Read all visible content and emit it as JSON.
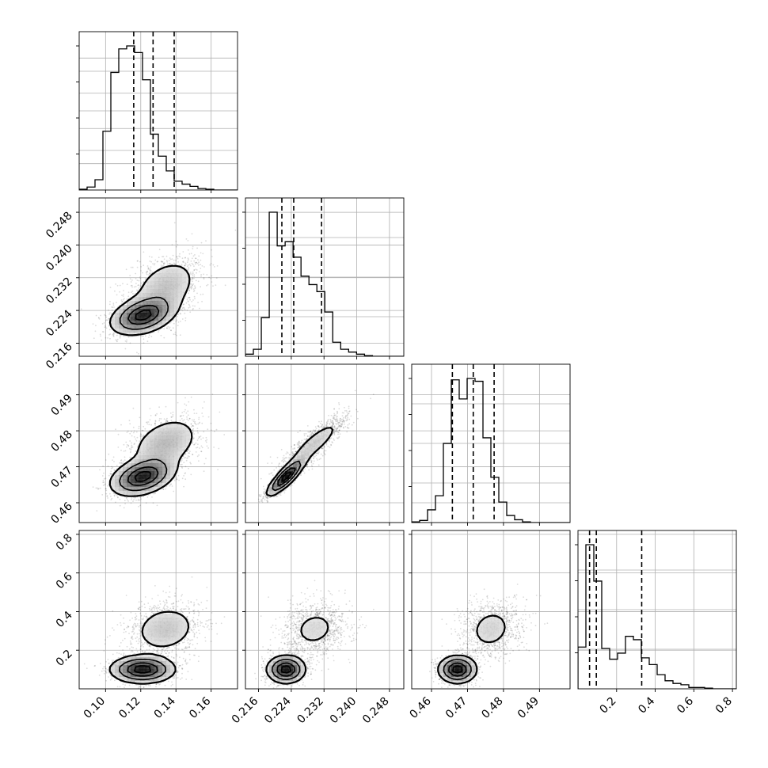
{
  "chart_data": {
    "type": "corner",
    "title": "",
    "parameters": [
      {
        "name": "",
        "range": [
          0.085,
          0.175
        ],
        "ticks": [
          0.1,
          0.12,
          0.14,
          0.16
        ],
        "tick_labels": [
          "0.10",
          "0.12",
          "0.14",
          "0.16"
        ],
        "quantiles": [
          0.116,
          0.127,
          0.139
        ],
        "histogram": {
          "bin_start": 0.085,
          "bin_width": 0.0045,
          "counts": [
            1,
            4,
            14,
            80,
            160,
            192,
            196,
            187,
            150,
            76,
            46,
            26,
            12,
            8,
            5,
            2,
            1,
            0,
            0,
            0
          ]
        }
      },
      {
        "name": "",
        "range": [
          0.2128,
          0.2515
        ],
        "ticks": [
          0.216,
          0.224,
          0.232,
          0.24,
          0.248
        ],
        "tick_labels": [
          "0.216",
          "0.224",
          "0.232",
          "0.240",
          "0.248"
        ],
        "quantiles": [
          0.2217,
          0.2246,
          0.2314
        ],
        "histogram": {
          "bin_start": 0.2128,
          "bin_width": 0.00194,
          "counts": [
            3,
            10,
            55,
            205,
            157,
            163,
            141,
            114,
            102,
            92,
            63,
            20,
            10,
            6,
            3,
            1,
            0,
            0,
            0,
            0
          ]
        }
      },
      {
        "name": "",
        "range": [
          0.4545,
          0.4985
        ],
        "ticks": [
          0.46,
          0.47,
          0.48,
          0.49
        ],
        "tick_labels": [
          "0.46",
          "0.47",
          "0.48",
          "0.49"
        ],
        "quantiles": [
          0.4658,
          0.4716,
          0.4774
        ],
        "histogram": {
          "bin_start": 0.4545,
          "bin_width": 0.0022,
          "counts": [
            1,
            3,
            18,
            38,
            112,
            202,
            175,
            204,
            200,
            120,
            64,
            29,
            10,
            4,
            1,
            0,
            0,
            0,
            0,
            0
          ]
        }
      },
      {
        "name": "",
        "range": [
          0.0,
          0.82
        ],
        "ticks": [
          0.2,
          0.4,
          0.6,
          0.8
        ],
        "tick_labels": [
          "0.2",
          "0.4",
          "0.6",
          "0.8"
        ],
        "quantiles": [
          0.06,
          0.095,
          0.33
        ],
        "histogram": {
          "bin_start": 0.0,
          "bin_width": 0.041,
          "counts": [
            62,
            214,
            160,
            60,
            44,
            53,
            78,
            73,
            46,
            36,
            21,
            12,
            8,
            6,
            2,
            2,
            1,
            0,
            0,
            0
          ]
        }
      }
    ],
    "density_modes": [
      {
        "weight": 0.62,
        "mean": [
          0.121,
          0.2227,
          0.4672,
          0.1
        ],
        "std": [
          0.009,
          0.0023,
          0.0026,
          0.035
        ],
        "corr": [
          [
            1,
            0.35,
            0.35,
            0.0
          ],
          [
            0.35,
            1,
            0.85,
            0.0
          ],
          [
            0.35,
            0.85,
            1,
            0.0
          ],
          [
            0.0,
            0.0,
            0.0,
            1
          ]
        ]
      },
      {
        "weight": 0.38,
        "mean": [
          0.134,
          0.2297,
          0.4765,
          0.31
        ],
        "std": [
          0.011,
          0.0042,
          0.0042,
          0.075
        ],
        "corr": [
          [
            1,
            0.35,
            0.35,
            0.15
          ],
          [
            0.35,
            1,
            0.85,
            0.15
          ],
          [
            0.35,
            0.85,
            1,
            0.15
          ],
          [
            0.15,
            0.15,
            0.15,
            1
          ]
        ]
      }
    ],
    "contour_levels": [
      0.393,
      0.865,
      0.989
    ],
    "grid": true,
    "style": {
      "line": "#000000",
      "grid": "#b0b0b0",
      "points": "#000000",
      "quantile_dash": "#000000"
    }
  }
}
